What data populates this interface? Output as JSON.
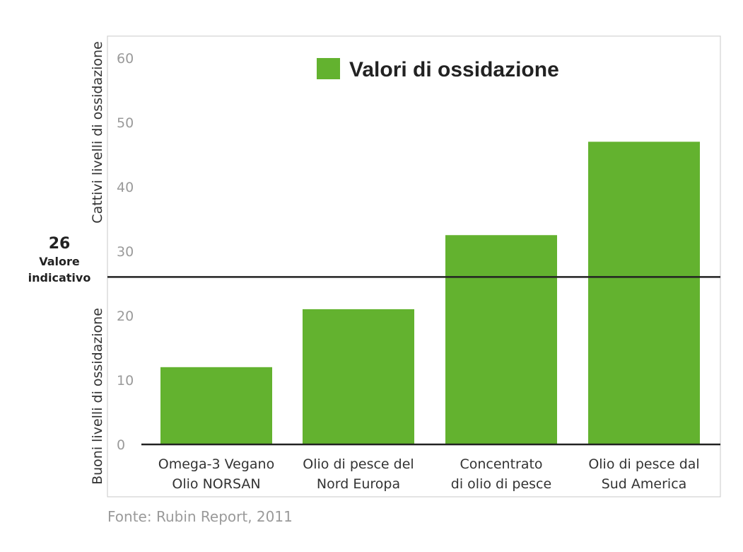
{
  "chart_data": {
    "type": "bar",
    "categories": [
      [
        "Omega-3 Vegano",
        "Olio NORSAN"
      ],
      [
        "Olio di pesce del",
        "Nord Europa"
      ],
      [
        "Concentrato",
        "di olio di pesce"
      ],
      [
        "Olio di pesce dal",
        "Sud America"
      ]
    ],
    "series": [
      {
        "name": "Valori di ossidazione",
        "values": [
          12,
          21,
          32.5,
          47
        ]
      }
    ],
    "ylim": [
      0,
      60
    ],
    "yticks": [
      0,
      10,
      20,
      30,
      40,
      50,
      60
    ],
    "reference_line": {
      "value": 26,
      "label_value": "26",
      "label_lines": [
        "Valore",
        "indicativo"
      ]
    },
    "upper_axis_label": "Cattivi livelli di ossidazione",
    "lower_axis_label": "Buoni livelli di ossidazione",
    "legend": {
      "label": "Valori di ossidazione",
      "placement": "top-center"
    },
    "grid": false,
    "colors": {
      "bar": "#63b22f",
      "axis": "#222222",
      "frame": "#c8c8c8"
    }
  },
  "source": "Fonte: Rubin Report, 2011"
}
